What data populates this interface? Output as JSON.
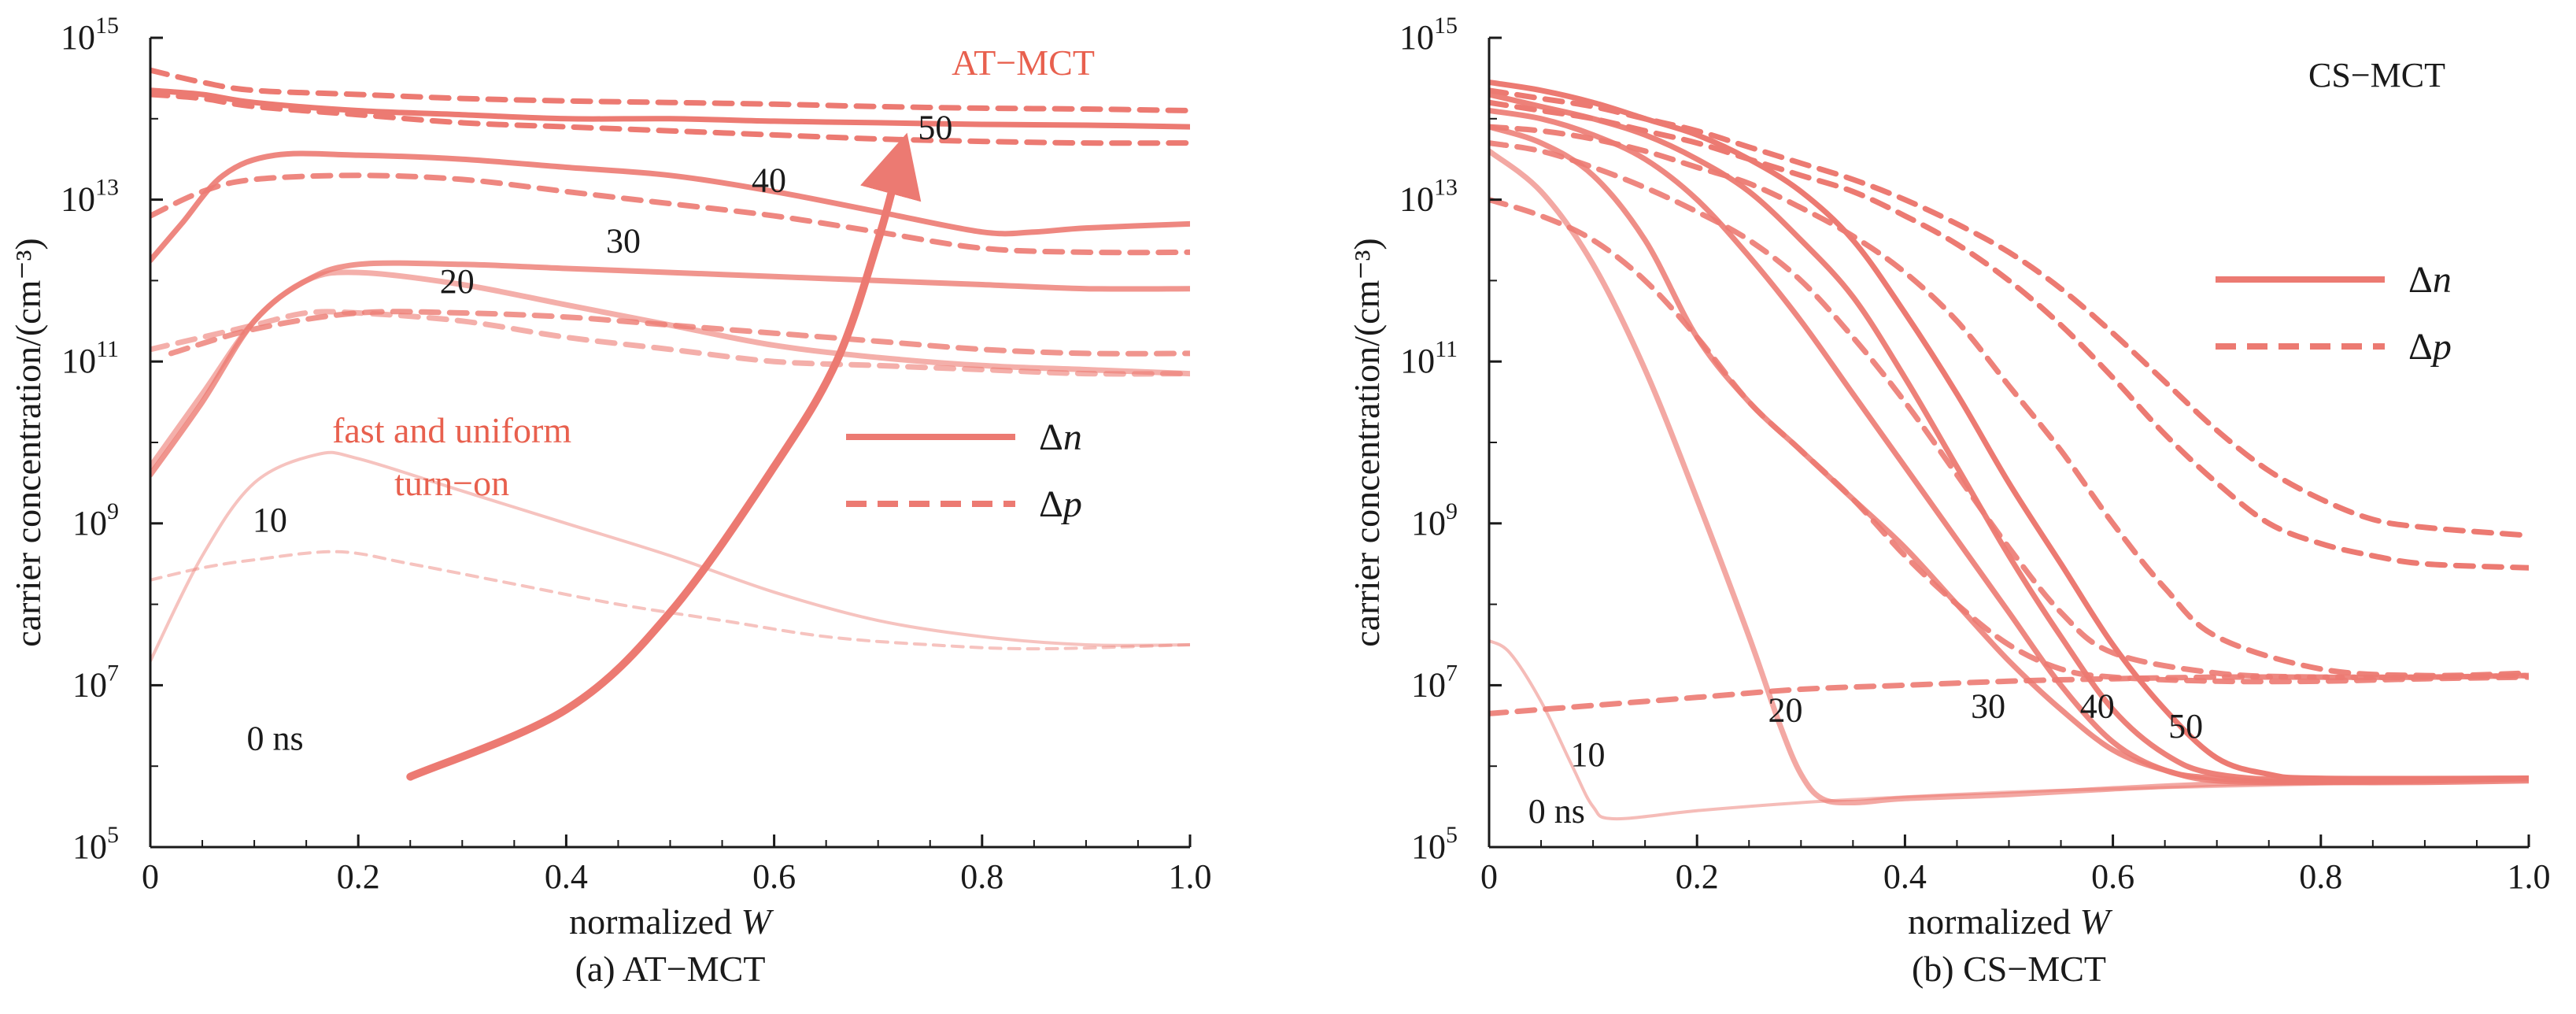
{
  "colors": {
    "curve": "#ec7a72",
    "accent": "#e8604e",
    "axis": "#1a1a1a"
  },
  "chart_data": [
    {
      "id": "a",
      "type": "line",
      "caption": "(a) AT−MCT",
      "title_label": "AT−MCT",
      "xlabel": "normalized W",
      "ylabel": "carrier concentration/(cm⁻³)",
      "xlim": [
        0,
        1.0
      ],
      "ylim": [
        5,
        15
      ],
      "yscale": "log",
      "x_ticks": [
        "0",
        "0.2",
        "0.4",
        "0.6",
        "0.8",
        "1.0"
      ],
      "y_ticks": [
        {
          "base": "10",
          "exp": "5"
        },
        {
          "base": "10",
          "exp": "7"
        },
        {
          "base": "10",
          "exp": "9"
        },
        {
          "base": "10",
          "exp": "11"
        },
        {
          "base": "10",
          "exp": "13"
        },
        {
          "base": "10",
          "exp": "15"
        }
      ],
      "legend": {
        "n_label": "Δn",
        "p_label": "Δp",
        "position": "right-middle"
      },
      "annotations": [
        {
          "text": "fast and uniform",
          "x": 0.29,
          "y": 10.0
        },
        {
          "text": "turn−on",
          "x": 0.29,
          "y": 9.35
        },
        {
          "text": "0 ns",
          "x": 0.12,
          "y": 6.2
        },
        {
          "text": "10",
          "x": 0.115,
          "y": 8.9
        },
        {
          "text": "20",
          "x": 0.295,
          "y": 11.85
        },
        {
          "text": "30",
          "x": 0.455,
          "y": 12.35
        },
        {
          "text": "40",
          "x": 0.595,
          "y": 13.1
        },
        {
          "text": "50",
          "x": 0.755,
          "y": 13.75
        }
      ],
      "arrow": [
        [
          0.25,
          5.87
        ],
        [
          0.4,
          6.7
        ],
        [
          0.5,
          7.9
        ],
        [
          0.6,
          9.7
        ],
        [
          0.66,
          11.0
        ],
        [
          0.7,
          12.5
        ],
        [
          0.72,
          13.45
        ]
      ],
      "series": [
        {
          "name": "10",
          "kind": "n",
          "opacity": 0.45,
          "width": 4,
          "x": [
            0,
            0.05,
            0.1,
            0.16,
            0.2,
            0.3,
            0.4,
            0.5,
            0.6,
            0.7,
            0.8,
            0.9,
            1.0
          ],
          "y": [
            7.3,
            8.6,
            9.5,
            9.85,
            9.8,
            9.4,
            9.0,
            8.6,
            8.15,
            7.8,
            7.6,
            7.5,
            7.5
          ]
        },
        {
          "name": "10",
          "kind": "p",
          "opacity": 0.45,
          "width": 4,
          "x": [
            0,
            0.05,
            0.1,
            0.18,
            0.25,
            0.35,
            0.45,
            0.55,
            0.65,
            0.75,
            0.85,
            1.0
          ],
          "y": [
            8.3,
            8.45,
            8.55,
            8.65,
            8.5,
            8.25,
            8.0,
            7.8,
            7.6,
            7.5,
            7.45,
            7.5
          ]
        },
        {
          "name": "20",
          "kind": "n",
          "opacity": 0.6,
          "width": 7,
          "x": [
            0,
            0.05,
            0.1,
            0.15,
            0.2,
            0.3,
            0.4,
            0.5,
            0.6,
            0.7,
            0.8,
            0.9,
            1.0
          ],
          "y": [
            9.7,
            10.6,
            11.5,
            12.0,
            12.1,
            11.95,
            11.7,
            11.45,
            11.2,
            11.05,
            10.95,
            10.9,
            10.85
          ]
        },
        {
          "name": "20",
          "kind": "p",
          "opacity": 0.6,
          "width": 7,
          "x": [
            0,
            0.05,
            0.1,
            0.15,
            0.2,
            0.3,
            0.4,
            0.5,
            0.6,
            0.7,
            0.8,
            0.9,
            1.0
          ],
          "y": [
            11.15,
            11.3,
            11.45,
            11.6,
            11.6,
            11.5,
            11.3,
            11.15,
            11.0,
            10.95,
            10.9,
            10.85,
            10.85
          ]
        },
        {
          "name": "30",
          "kind": "n",
          "opacity": 0.8,
          "width": 7,
          "x": [
            0,
            0.05,
            0.1,
            0.15,
            0.2,
            0.3,
            0.4,
            0.5,
            0.6,
            0.7,
            0.8,
            0.9,
            1.0
          ],
          "y": [
            9.6,
            10.5,
            11.5,
            12.0,
            12.2,
            12.2,
            12.15,
            12.1,
            12.05,
            12.0,
            11.95,
            11.9,
            11.9
          ]
        },
        {
          "name": "30",
          "kind": "p",
          "opacity": 0.8,
          "width": 7,
          "x": [
            0.02,
            0.1,
            0.2,
            0.3,
            0.4,
            0.5,
            0.6,
            0.7,
            0.8,
            0.9,
            1.0
          ],
          "y": [
            11.1,
            11.4,
            11.6,
            11.6,
            11.55,
            11.45,
            11.35,
            11.25,
            11.15,
            11.1,
            11.1
          ]
        },
        {
          "name": "40",
          "kind": "n",
          "opacity": 0.9,
          "width": 7,
          "x": [
            0,
            0.03,
            0.07,
            0.12,
            0.2,
            0.3,
            0.4,
            0.5,
            0.6,
            0.7,
            0.8,
            0.85,
            0.9,
            1.0
          ],
          "y": [
            12.25,
            12.7,
            13.3,
            13.55,
            13.55,
            13.5,
            13.4,
            13.3,
            13.1,
            12.85,
            12.6,
            12.6,
            12.65,
            12.7
          ]
        },
        {
          "name": "40",
          "kind": "p",
          "opacity": 0.9,
          "width": 7,
          "x": [
            0,
            0.05,
            0.1,
            0.2,
            0.3,
            0.4,
            0.5,
            0.6,
            0.7,
            0.8,
            0.9,
            1.0
          ],
          "y": [
            12.8,
            13.1,
            13.25,
            13.3,
            13.25,
            13.1,
            12.95,
            12.8,
            12.6,
            12.4,
            12.35,
            12.35
          ]
        },
        {
          "name": "50",
          "kind": "n",
          "opacity": 1.0,
          "width": 7,
          "x": [
            0,
            0.05,
            0.1,
            0.2,
            0.3,
            0.4,
            0.5,
            0.6,
            0.7,
            0.8,
            0.9,
            1.0
          ],
          "y": [
            14.35,
            14.3,
            14.2,
            14.1,
            14.05,
            14.0,
            14.0,
            13.97,
            13.95,
            13.93,
            13.92,
            13.9
          ]
        },
        {
          "name": "50",
          "kind": "p",
          "opacity": 1.0,
          "width": 7,
          "x": [
            0,
            0.05,
            0.1,
            0.2,
            0.3,
            0.4,
            0.5,
            0.6,
            0.7,
            0.8,
            0.9,
            1.0
          ],
          "y": [
            14.6,
            14.45,
            14.35,
            14.3,
            14.25,
            14.22,
            14.2,
            14.18,
            14.15,
            14.13,
            14.12,
            14.1
          ]
        },
        {
          "name": "50",
          "kind": "p",
          "opacity": 1.0,
          "width": 7,
          "x": [
            0,
            0.05,
            0.1,
            0.2,
            0.3,
            0.4,
            0.5,
            0.6,
            0.7,
            0.8,
            0.9,
            1.0
          ],
          "y": [
            14.3,
            14.25,
            14.15,
            14.05,
            13.95,
            13.9,
            13.85,
            13.8,
            13.75,
            13.72,
            13.7,
            13.7
          ]
        }
      ]
    },
    {
      "id": "b",
      "type": "line",
      "caption": "(b) CS−MCT",
      "title_label": "CS−MCT",
      "xlabel": "normalized W",
      "ylabel": "carrier concentration/(cm⁻³)",
      "xlim": [
        0,
        1.0
      ],
      "ylim": [
        5,
        15
      ],
      "yscale": "log",
      "x_ticks": [
        "0",
        "0.2",
        "0.4",
        "0.6",
        "0.8",
        "1.0"
      ],
      "y_ticks": [
        {
          "base": "10",
          "exp": "5"
        },
        {
          "base": "10",
          "exp": "7"
        },
        {
          "base": "10",
          "exp": "9"
        },
        {
          "base": "10",
          "exp": "11"
        },
        {
          "base": "10",
          "exp": "13"
        },
        {
          "base": "10",
          "exp": "15"
        }
      ],
      "legend": {
        "n_label": "Δn",
        "p_label": "Δp",
        "position": "right-middle"
      },
      "annotations": [
        {
          "text": "0 ns",
          "x": 0.065,
          "y": 5.3
        },
        {
          "text": "10",
          "x": 0.095,
          "y": 6.0
        },
        {
          "text": "20",
          "x": 0.285,
          "y": 6.55
        },
        {
          "text": "30",
          "x": 0.48,
          "y": 6.6
        },
        {
          "text": "40",
          "x": 0.585,
          "y": 6.6
        },
        {
          "text": "50",
          "x": 0.67,
          "y": 6.35
        }
      ],
      "series": [
        {
          "name": "0 ns",
          "kind": "n",
          "opacity": 0.5,
          "width": 4,
          "x": [
            0,
            0.02,
            0.05,
            0.08,
            0.1,
            0.12,
            0.2,
            0.3,
            0.4,
            0.5,
            0.6,
            0.7,
            0.8,
            0.9,
            1.0
          ],
          "y": [
            7.55,
            7.4,
            6.8,
            6.0,
            5.5,
            5.35,
            5.45,
            5.55,
            5.62,
            5.68,
            5.72,
            5.75,
            5.78,
            5.8,
            5.82
          ]
        },
        {
          "name": "0 ns",
          "kind": "p",
          "opacity": 0.9,
          "width": 7,
          "x": [
            0,
            0.1,
            0.2,
            0.3,
            0.4,
            0.5,
            0.6,
            0.7,
            0.8,
            0.9,
            1.0
          ],
          "y": [
            6.65,
            6.75,
            6.85,
            6.95,
            7.0,
            7.05,
            7.08,
            7.1,
            7.1,
            7.1,
            7.12
          ]
        },
        {
          "name": "10",
          "kind": "n",
          "opacity": 0.65,
          "width": 7,
          "x": [
            0,
            0.05,
            0.1,
            0.15,
            0.2,
            0.25,
            0.28,
            0.3,
            0.32,
            0.35,
            0.4,
            0.5,
            0.6,
            0.7,
            0.8,
            0.9,
            1.0
          ],
          "y": [
            13.6,
            13.1,
            12.2,
            10.9,
            9.3,
            7.6,
            6.5,
            5.9,
            5.6,
            5.55,
            5.6,
            5.65,
            5.72,
            5.78,
            5.8,
            5.82,
            5.85
          ]
        },
        {
          "name": "20",
          "kind": "n",
          "opacity": 0.85,
          "width": 7,
          "x": [
            0,
            0.05,
            0.1,
            0.15,
            0.2,
            0.25,
            0.3,
            0.35,
            0.4,
            0.45,
            0.5,
            0.55,
            0.6,
            0.65,
            0.7,
            0.8,
            0.9,
            1.0
          ],
          "y": [
            13.9,
            13.7,
            13.3,
            12.5,
            11.3,
            10.5,
            9.9,
            9.3,
            8.7,
            8.0,
            7.3,
            6.7,
            6.2,
            5.95,
            5.82,
            5.8,
            5.8,
            5.82
          ]
        },
        {
          "name": "30",
          "kind": "n",
          "opacity": 0.9,
          "width": 7,
          "x": [
            0,
            0.05,
            0.1,
            0.15,
            0.2,
            0.25,
            0.3,
            0.35,
            0.4,
            0.45,
            0.5,
            0.55,
            0.6,
            0.65,
            0.7,
            0.8,
            1.0
          ],
          "y": [
            14.1,
            14.0,
            13.8,
            13.5,
            13.0,
            12.3,
            11.5,
            10.6,
            9.7,
            8.8,
            7.9,
            7.0,
            6.3,
            5.95,
            5.85,
            5.8,
            5.85
          ]
        },
        {
          "name": "40",
          "kind": "n",
          "opacity": 0.95,
          "width": 7,
          "x": [
            0,
            0.05,
            0.1,
            0.15,
            0.2,
            0.25,
            0.3,
            0.35,
            0.4,
            0.45,
            0.5,
            0.55,
            0.6,
            0.65,
            0.7,
            0.8,
            1.0
          ],
          "y": [
            14.3,
            14.15,
            14.0,
            13.8,
            13.5,
            13.1,
            12.5,
            11.8,
            10.8,
            9.7,
            8.6,
            7.6,
            6.7,
            6.15,
            5.9,
            5.82,
            5.85
          ]
        },
        {
          "name": "50",
          "kind": "n",
          "opacity": 1.0,
          "width": 7,
          "x": [
            0,
            0.05,
            0.1,
            0.15,
            0.2,
            0.25,
            0.3,
            0.35,
            0.4,
            0.45,
            0.5,
            0.55,
            0.6,
            0.65,
            0.7,
            0.75,
            0.8,
            1.0
          ],
          "y": [
            14.45,
            14.35,
            14.2,
            14.0,
            13.8,
            13.5,
            13.1,
            12.5,
            11.6,
            10.6,
            9.5,
            8.5,
            7.5,
            6.7,
            6.1,
            5.9,
            5.85,
            5.85
          ]
        },
        {
          "name": "10",
          "kind": "p",
          "opacity": 0.9,
          "width": 7,
          "x": [
            0,
            0.05,
            0.1,
            0.15,
            0.2,
            0.25,
            0.3,
            0.35,
            0.4,
            0.45,
            0.5,
            0.55,
            0.6,
            0.7,
            0.8,
            0.9,
            1.0
          ],
          "y": [
            13.0,
            12.8,
            12.5,
            12.0,
            11.3,
            10.5,
            9.9,
            9.3,
            8.6,
            8.0,
            7.5,
            7.2,
            7.1,
            7.05,
            7.05,
            7.08,
            7.1
          ]
        },
        {
          "name": "20",
          "kind": "p",
          "opacity": 0.9,
          "width": 7,
          "x": [
            0,
            0.05,
            0.1,
            0.15,
            0.2,
            0.25,
            0.3,
            0.35,
            0.4,
            0.45,
            0.5,
            0.55,
            0.6,
            0.7,
            0.8,
            0.9,
            1.0
          ],
          "y": [
            13.7,
            13.6,
            13.4,
            13.15,
            12.85,
            12.5,
            12.0,
            11.3,
            10.5,
            9.6,
            8.7,
            7.9,
            7.4,
            7.15,
            7.1,
            7.1,
            7.12
          ]
        },
        {
          "name": "30",
          "kind": "p",
          "opacity": 0.95,
          "width": 7,
          "x": [
            0,
            0.05,
            0.1,
            0.15,
            0.2,
            0.25,
            0.3,
            0.35,
            0.4,
            0.45,
            0.5,
            0.55,
            0.6,
            0.65,
            0.7,
            0.8,
            0.9,
            1.0
          ],
          "y": [
            13.9,
            13.85,
            13.75,
            13.6,
            13.4,
            13.2,
            12.9,
            12.55,
            12.1,
            11.5,
            10.7,
            9.9,
            9.0,
            8.2,
            7.6,
            7.2,
            7.12,
            7.15
          ]
        },
        {
          "name": "40",
          "kind": "p",
          "opacity": 1.0,
          "width": 7,
          "x": [
            0,
            0.05,
            0.1,
            0.15,
            0.2,
            0.25,
            0.3,
            0.35,
            0.4,
            0.45,
            0.5,
            0.55,
            0.6,
            0.65,
            0.7,
            0.75,
            0.8,
            0.85,
            0.9,
            1.0
          ],
          "y": [
            14.2,
            14.1,
            14.0,
            13.85,
            13.7,
            13.5,
            13.3,
            13.1,
            12.8,
            12.45,
            12.0,
            11.45,
            10.8,
            10.1,
            9.5,
            9.0,
            8.75,
            8.6,
            8.5,
            8.45
          ]
        },
        {
          "name": "50",
          "kind": "p",
          "opacity": 1.0,
          "width": 7,
          "x": [
            0,
            0.05,
            0.1,
            0.15,
            0.2,
            0.25,
            0.3,
            0.35,
            0.4,
            0.45,
            0.5,
            0.55,
            0.6,
            0.65,
            0.7,
            0.75,
            0.8,
            0.85,
            0.9,
            1.0
          ],
          "y": [
            14.35,
            14.25,
            14.15,
            14.0,
            13.85,
            13.65,
            13.45,
            13.25,
            13.0,
            12.7,
            12.35,
            11.9,
            11.35,
            10.75,
            10.15,
            9.65,
            9.3,
            9.05,
            8.95,
            8.85
          ]
        }
      ]
    }
  ]
}
